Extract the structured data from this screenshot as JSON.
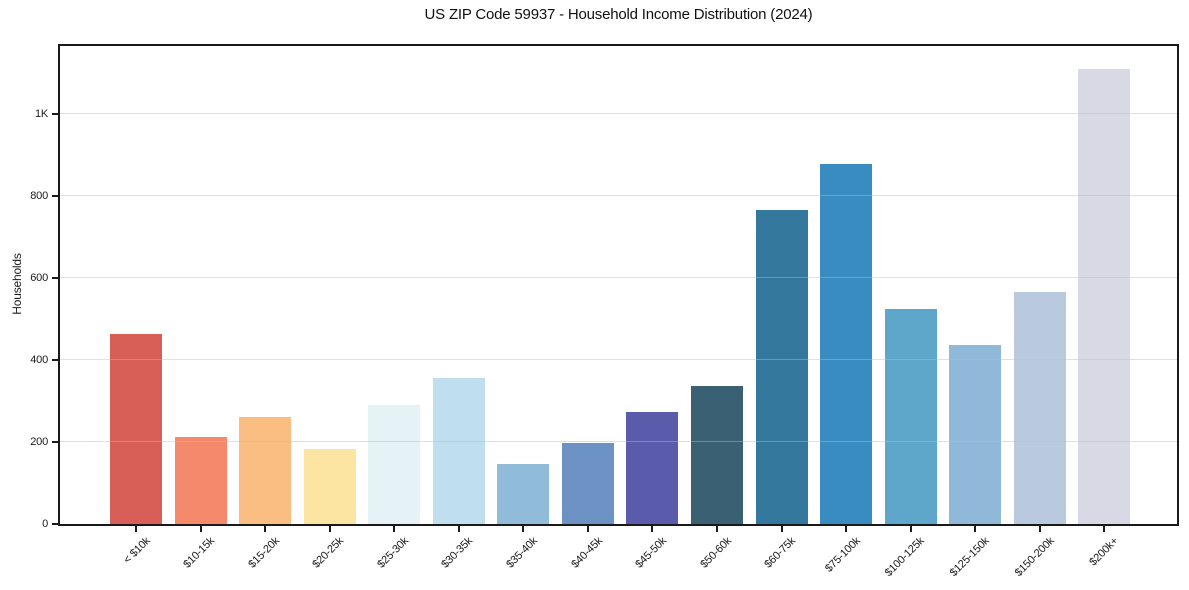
{
  "chart_data": {
    "type": "bar",
    "title": "US ZIP Code 59937 - Household Income Distribution (2024)",
    "xlabel": "",
    "ylabel": "Households",
    "categories": [
      "< $10k",
      "$10-15k",
      "$15-20k",
      "$20-25k",
      "$25-30k",
      "$30-35k",
      "$35-40k",
      "$40-45k",
      "$45-50k",
      "$50-60k",
      "$60-75k",
      "$75-100k",
      "$100-125k",
      "$125-150k",
      "$150-200k",
      "$200k+"
    ],
    "values": [
      463,
      213,
      262,
      182,
      291,
      357,
      146,
      197,
      274,
      336,
      766,
      877,
      525,
      436,
      566,
      1108
    ],
    "bar_colors": [
      "#d75f58",
      "#f5896c",
      "#fabd82",
      "#fce5a2",
      "#e5f2f6",
      "#bfdfee",
      "#90bcda",
      "#6c93c4",
      "#5a5bab",
      "#3a6073",
      "#35789e",
      "#398cbf",
      "#5fa6cb",
      "#90b8d8",
      "#bacade",
      "#d8d9e5"
    ],
    "yticks": [
      {
        "value": 0,
        "label": "0"
      },
      {
        "value": 200,
        "label": "200"
      },
      {
        "value": 400,
        "label": "400"
      },
      {
        "value": 600,
        "label": "600"
      },
      {
        "value": 800,
        "label": "800"
      },
      {
        "value": 1000,
        "label": "1K"
      }
    ],
    "ylim": [
      0,
      1165
    ],
    "grid": "horizontal",
    "grid_color": "rgba(185,188,200,0.45)",
    "axis_color": "#1a1a1a",
    "background": "#ffffff",
    "legend": "none"
  }
}
